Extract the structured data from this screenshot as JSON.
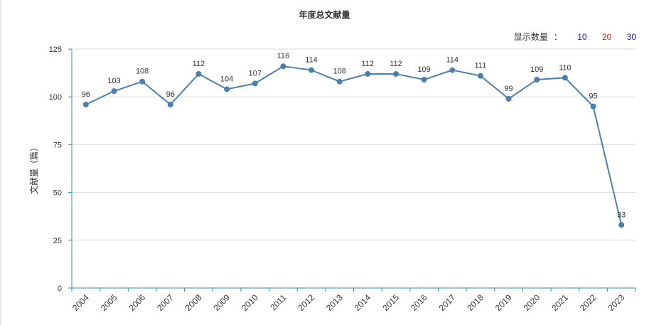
{
  "chart_data": {
    "type": "line",
    "title": "年度总文献量",
    "ylabel": "文献量（篇）",
    "xlabel": "",
    "categories": [
      "2004",
      "2005",
      "2006",
      "2007",
      "2008",
      "2009",
      "2010",
      "2011",
      "2012",
      "2013",
      "2014",
      "2015",
      "2016",
      "2017",
      "2018",
      "2019",
      "2020",
      "2021",
      "2022",
      "2023"
    ],
    "values": [
      96,
      103,
      108,
      96,
      112,
      104,
      107,
      116,
      114,
      108,
      112,
      112,
      109,
      114,
      111,
      99,
      109,
      110,
      95,
      33
    ],
    "ylim": [
      0,
      125
    ],
    "yticks": [
      0,
      25,
      50,
      75,
      100,
      125
    ],
    "grid": true,
    "line_color": "#4a7fb0",
    "axis_color": "#1b9aa8"
  },
  "count_selector": {
    "label": "显示数量",
    "colon": "：",
    "options": [
      {
        "label": "10",
        "color": "#1a1ad0"
      },
      {
        "label": "20",
        "color": "#e02020"
      },
      {
        "label": "30",
        "color": "#1a1ad0"
      }
    ]
  }
}
